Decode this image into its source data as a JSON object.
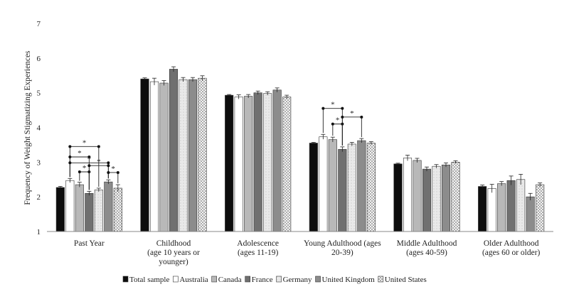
{
  "colors": {
    "Total sample": "#0d0d0d",
    "Australia": "#ffffff",
    "Canada": "#b8b8b8",
    "France": "#707070",
    "Germany": "#e2e2e2",
    "United Kingdom": "#8c8c8c",
    "United States": "#f4f4f4"
  },
  "chart_data": {
    "type": "bar",
    "title": "",
    "xlabel": "",
    "ylabel": "Frequency of Weight Stigmatizing Experiences",
    "ylim": [
      1,
      7
    ],
    "yticks": [
      "1",
      "2",
      "3",
      "4",
      "5",
      "6",
      "7"
    ],
    "grid": false,
    "legend_position": "bottom",
    "categories": [
      [
        "Past Year"
      ],
      [
        "Childhood",
        "(age 10 years or",
        "younger)"
      ],
      [
        "Adolescence",
        "(ages 11-19)"
      ],
      [
        "Young Adulthood (ages",
        "20-39)"
      ],
      [
        "Middle Adulthood",
        "(ages 40-59)"
      ],
      [
        "Older Adulthood",
        "(ages 60 or older)"
      ]
    ],
    "series": [
      {
        "name": "Total sample",
        "values": [
          2.27,
          5.4,
          4.93,
          3.55,
          2.95,
          2.3
        ]
      },
      {
        "name": "Australia",
        "values": [
          2.47,
          5.32,
          4.88,
          3.73,
          3.12,
          2.24
        ]
      },
      {
        "name": "Canada",
        "values": [
          2.35,
          5.28,
          4.9,
          3.65,
          3.05,
          2.38
        ]
      },
      {
        "name": "France",
        "values": [
          2.1,
          5.68,
          5.0,
          3.37,
          2.8,
          2.47
        ]
      },
      {
        "name": "Germany",
        "values": [
          2.2,
          5.38,
          4.98,
          3.52,
          2.88,
          2.5
        ]
      },
      {
        "name": "United Kingdom",
        "values": [
          2.43,
          5.38,
          5.08,
          3.62,
          2.92,
          2.0
        ]
      },
      {
        "name": "United States",
        "values": [
          2.25,
          5.42,
          4.88,
          3.55,
          3.0,
          2.35
        ]
      }
    ],
    "error_bars": [
      [
        0.03,
        0.06,
        0.07,
        0.06,
        0.05,
        0.06,
        0.1
      ],
      [
        0.03,
        0.1,
        0.07,
        0.07,
        0.06,
        0.06,
        0.07
      ],
      [
        0.02,
        0.06,
        0.05,
        0.05,
        0.05,
        0.06,
        0.05
      ],
      [
        0.02,
        0.07,
        0.07,
        0.07,
        0.05,
        0.06,
        0.04
      ],
      [
        0.02,
        0.08,
        0.06,
        0.06,
        0.05,
        0.06,
        0.04
      ],
      [
        0.04,
        0.12,
        0.06,
        0.13,
        0.15,
        0.1,
        0.05
      ]
    ],
    "significance": [
      {
        "category": 0,
        "from": 1,
        "to": 4,
        "y": 3.45,
        "label": "*"
      },
      {
        "category": 0,
        "from": 1,
        "to": 3,
        "y": 3.15,
        "label": "*"
      },
      {
        "category": 0,
        "from": 1,
        "to": 5,
        "y": 2.98,
        "label": "*"
      },
      {
        "category": 0,
        "from": 2,
        "to": 3,
        "y": 2.72,
        "label": "*"
      },
      {
        "category": 0,
        "from": 3,
        "to": 5,
        "y": 2.9,
        "label": "*"
      },
      {
        "category": 0,
        "from": 5,
        "to": 6,
        "y": 2.7,
        "label": "*"
      },
      {
        "category": 3,
        "from": 1,
        "to": 3,
        "y": 4.55,
        "label": "*"
      },
      {
        "category": 3,
        "from": 2,
        "to": 3,
        "y": 4.1,
        "label": "*"
      },
      {
        "category": 3,
        "from": 3,
        "to": 5,
        "y": 4.3,
        "label": "*"
      }
    ]
  }
}
